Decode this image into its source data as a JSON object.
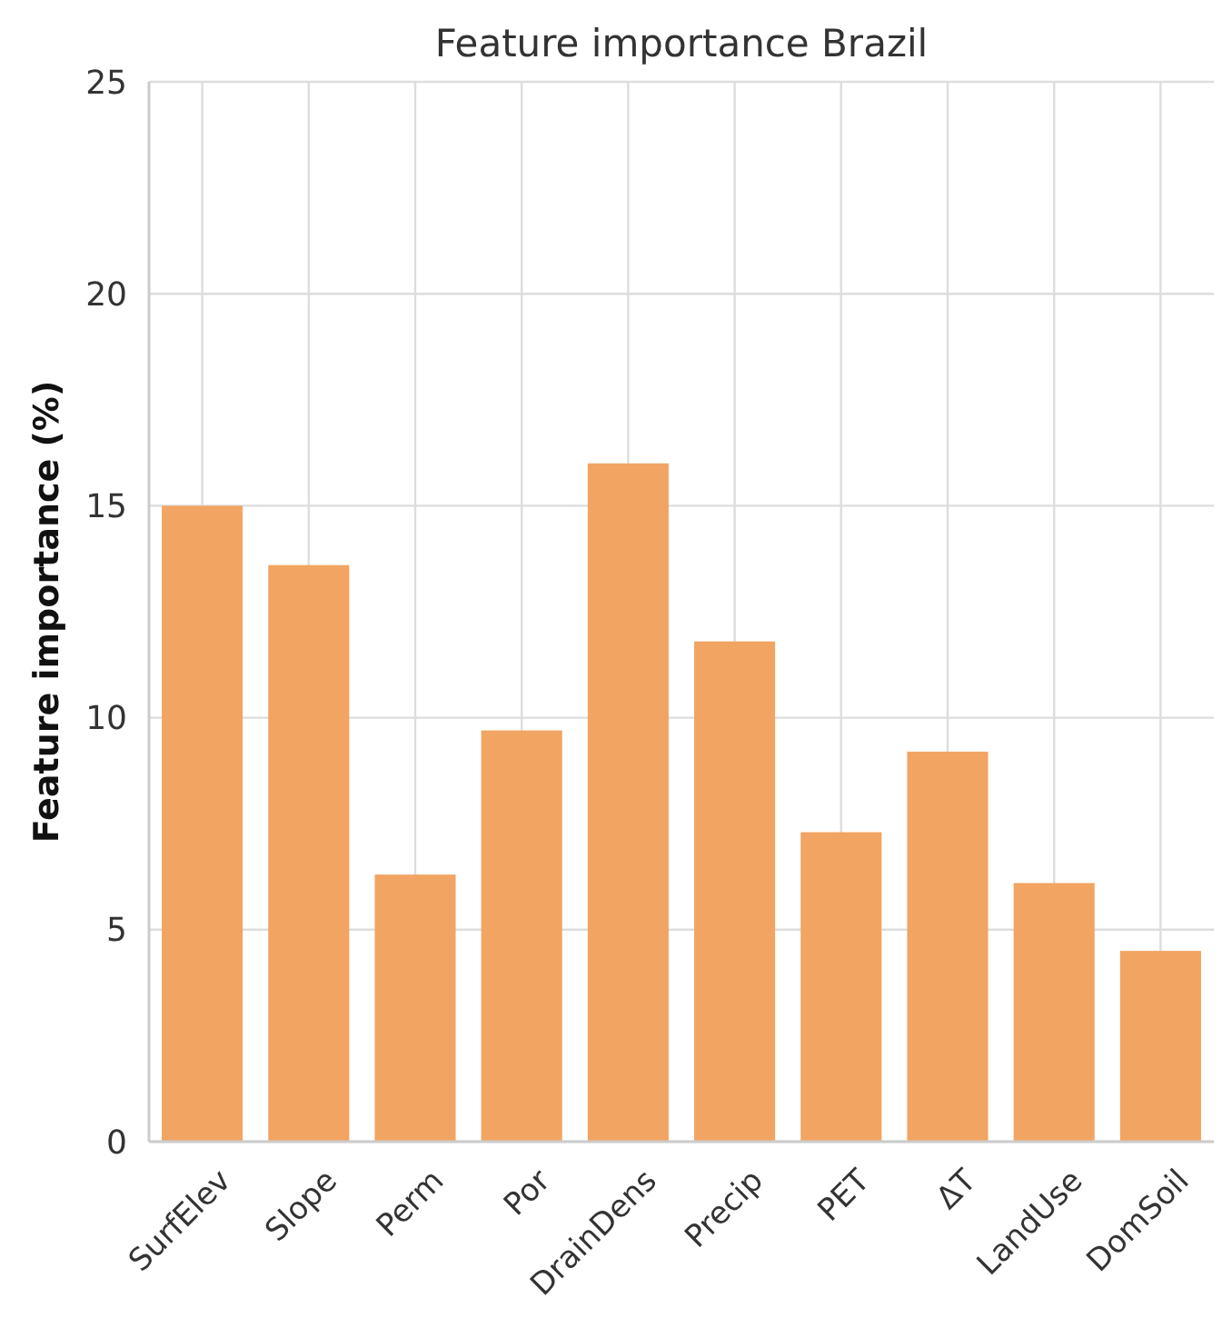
{
  "chart_data": {
    "type": "bar",
    "title": "Feature importance Brazil",
    "ylabel": "Feature importance (%)",
    "categories": [
      "SurfElev",
      "Slope",
      "Perm",
      "Por",
      "DrainDens",
      "Precip",
      "PET",
      "ΔT",
      "LandUse",
      "DomSoil"
    ],
    "values": [
      15.0,
      13.6,
      6.3,
      9.7,
      16.0,
      11.8,
      7.3,
      9.2,
      6.1,
      4.5
    ],
    "color": "#f2a462",
    "ylim": [
      0,
      25
    ],
    "yticks": [
      0,
      5,
      10,
      15,
      20,
      25
    ],
    "grid": true
  }
}
